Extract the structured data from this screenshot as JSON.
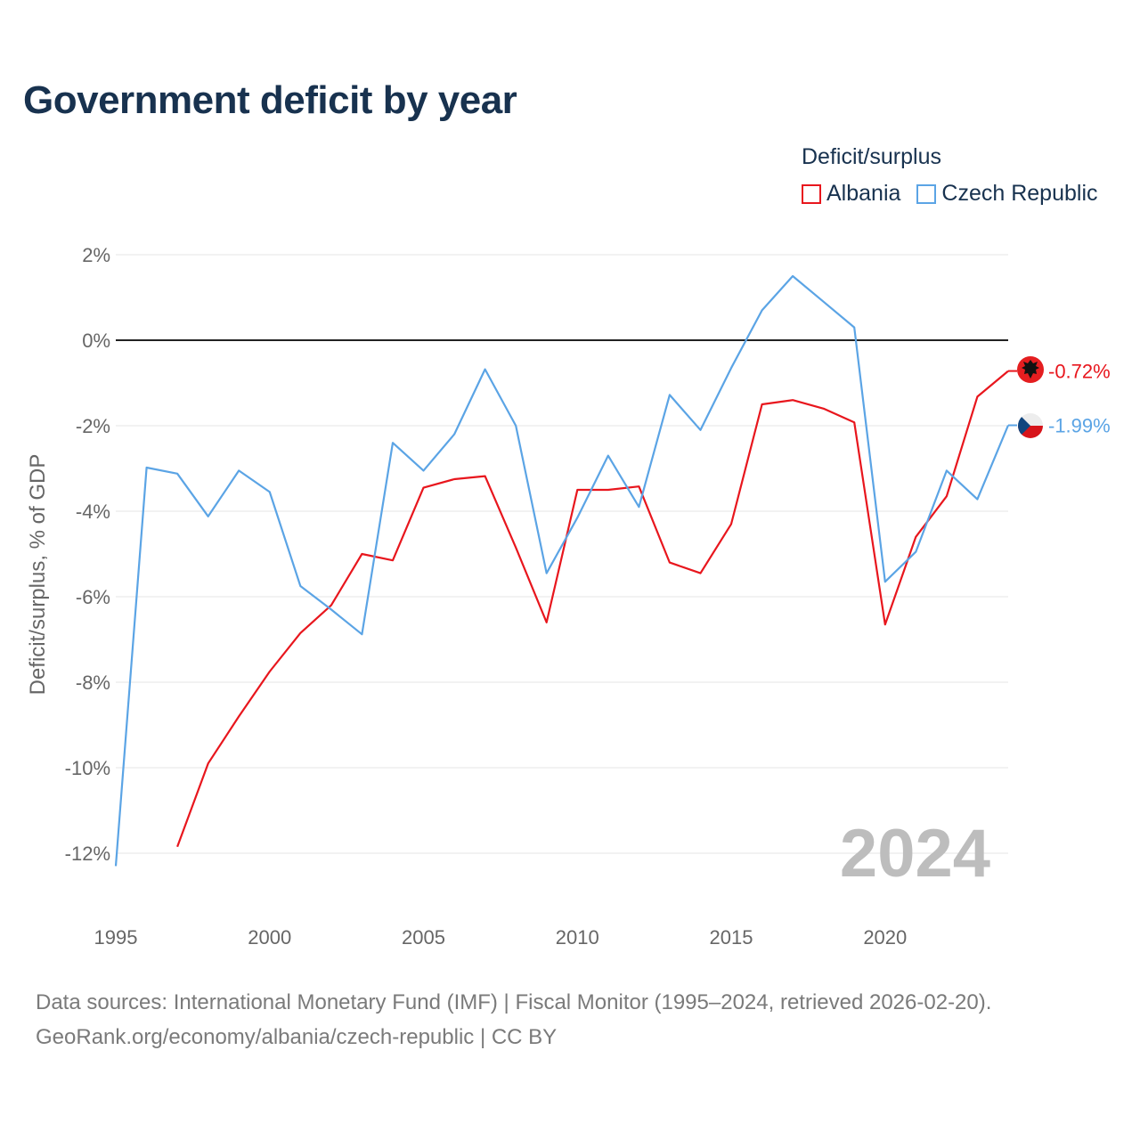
{
  "title": "Government deficit by year",
  "legend": {
    "title": "Deficit/surplus",
    "items": [
      {
        "label": "Albania",
        "color": "#e8161d"
      },
      {
        "label": "Czech Republic",
        "color": "#5ba4e5"
      }
    ]
  },
  "watermark_year": "2024",
  "footer": {
    "line1": "Data sources: International Monetary Fund (IMF) | Fiscal Monitor (1995–2024, retrieved 2026-02-20).",
    "line2": "GeoRank.org/economy/albania/czech-republic | CC BY"
  },
  "chart_data": {
    "type": "line",
    "title": "Government deficit by year",
    "xlabel": "",
    "ylabel": "Deficit/surplus, % of GDP",
    "xlim": [
      1995,
      2024
    ],
    "ylim": [
      -12.5,
      2.3
    ],
    "x_ticks": [
      1995,
      2000,
      2005,
      2010,
      2015,
      2020
    ],
    "x_tick_labels": [
      "1995",
      "2000",
      "2005",
      "2010",
      "2015",
      "2020"
    ],
    "y_ticks": [
      2,
      0,
      -2,
      -4,
      -6,
      -8,
      -10,
      -12
    ],
    "y_tick_labels": [
      "2%",
      "0%",
      "-2%",
      "-4%",
      "-6%",
      "-8%",
      "-10%",
      "-12%"
    ],
    "grid": true,
    "zero_line": true,
    "legend_position": "top-right",
    "series": [
      {
        "name": "Albania",
        "color": "#e8161d",
        "end_label": "-0.72%",
        "points": [
          [
            1997,
            -11.85
          ],
          [
            1998,
            -9.9
          ],
          [
            1999,
            -8.8
          ],
          [
            2000,
            -7.75
          ],
          [
            2001,
            -6.85
          ],
          [
            2002,
            -6.2
          ],
          [
            2003,
            -5.0
          ],
          [
            2004,
            -5.15
          ],
          [
            2005,
            -3.45
          ],
          [
            2006,
            -3.25
          ],
          [
            2007,
            -3.18
          ],
          [
            2008,
            -4.85
          ],
          [
            2009,
            -6.6
          ],
          [
            2010,
            -3.5
          ],
          [
            2011,
            -3.5
          ],
          [
            2012,
            -3.42
          ],
          [
            2013,
            -5.2
          ],
          [
            2014,
            -5.45
          ],
          [
            2015,
            -4.3
          ],
          [
            2016,
            -1.5
          ],
          [
            2017,
            -1.4
          ],
          [
            2018,
            -1.6
          ],
          [
            2019,
            -1.92
          ],
          [
            2020,
            -6.65
          ],
          [
            2021,
            -4.6
          ],
          [
            2022,
            -3.65
          ],
          [
            2023,
            -1.32
          ],
          [
            2024,
            -0.72
          ]
        ]
      },
      {
        "name": "Czech Republic",
        "color": "#5ba4e5",
        "end_label": "-1.99%",
        "points": [
          [
            1995,
            -12.3
          ],
          [
            1996,
            -2.98
          ],
          [
            1997,
            -3.12
          ],
          [
            1998,
            -4.12
          ],
          [
            1999,
            -3.05
          ],
          [
            2000,
            -3.55
          ],
          [
            2001,
            -5.75
          ],
          [
            2002,
            -6.3
          ],
          [
            2003,
            -6.88
          ],
          [
            2004,
            -2.4
          ],
          [
            2005,
            -3.05
          ],
          [
            2006,
            -2.2
          ],
          [
            2007,
            -0.68
          ],
          [
            2008,
            -2.0
          ],
          [
            2009,
            -5.45
          ],
          [
            2010,
            -4.15
          ],
          [
            2011,
            -2.7
          ],
          [
            2012,
            -3.9
          ],
          [
            2013,
            -1.28
          ],
          [
            2014,
            -2.1
          ],
          [
            2015,
            -0.65
          ],
          [
            2016,
            0.7
          ],
          [
            2017,
            1.5
          ],
          [
            2018,
            0.9
          ],
          [
            2019,
            0.3
          ],
          [
            2020,
            -5.65
          ],
          [
            2021,
            -4.95
          ],
          [
            2022,
            -3.05
          ],
          [
            2023,
            -3.72
          ],
          [
            2024,
            -1.99
          ]
        ]
      }
    ]
  }
}
